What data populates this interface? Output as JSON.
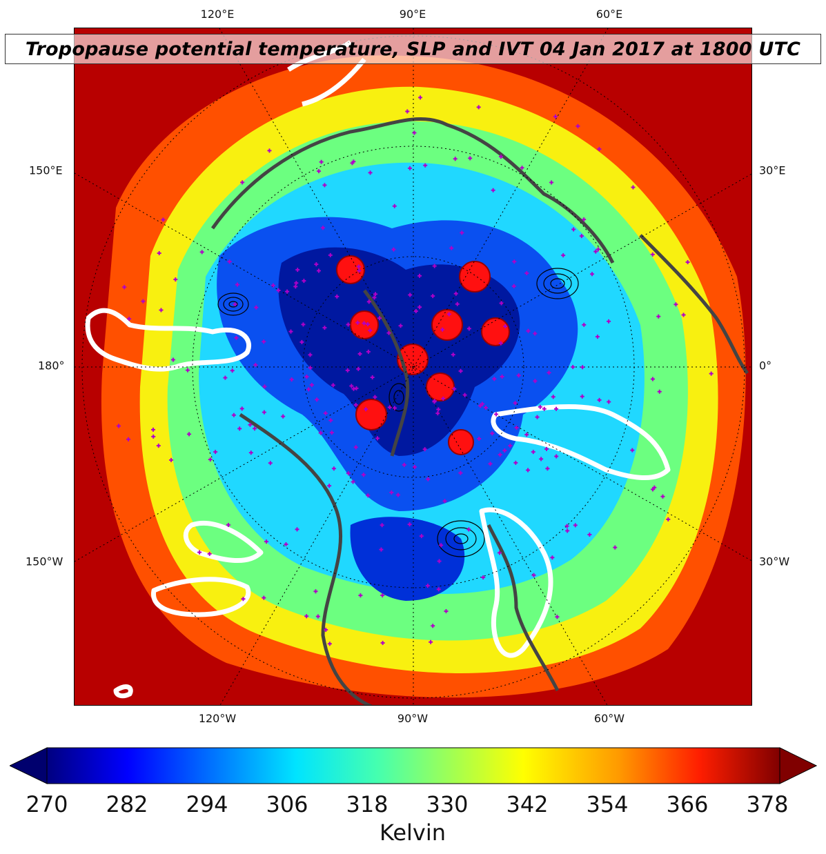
{
  "title": "Tropopause potential temperature, SLP and IVT 04 Jan 2017 at 1800 UTC",
  "map": {
    "projection": "north-polar-stereographic",
    "top_lon_labels": [
      "120°E",
      "90°E",
      "60°E"
    ],
    "bottom_lon_labels": [
      "120°W",
      "90°W",
      "60°W"
    ],
    "left_lat_labels": [
      "150°E",
      "180°",
      "150°W"
    ],
    "right_lat_labels": [
      "30°E",
      "0°",
      "30°W"
    ],
    "layers": [
      "tropopause-potential-temperature-fill",
      "slp-contours",
      "ivt-white-contours",
      "coastlines",
      "station-markers"
    ],
    "colors": {
      "coast": "#444444",
      "ivt": "#ffffff",
      "station": "#b000c8",
      "slp": "#000000"
    }
  },
  "colorbar": {
    "label": "Kelvin",
    "ticks": [
      "270",
      "282",
      "294",
      "306",
      "318",
      "330",
      "342",
      "354",
      "366",
      "378"
    ],
    "range": [
      270,
      378
    ],
    "extend": "both",
    "colormap": "jet"
  }
}
